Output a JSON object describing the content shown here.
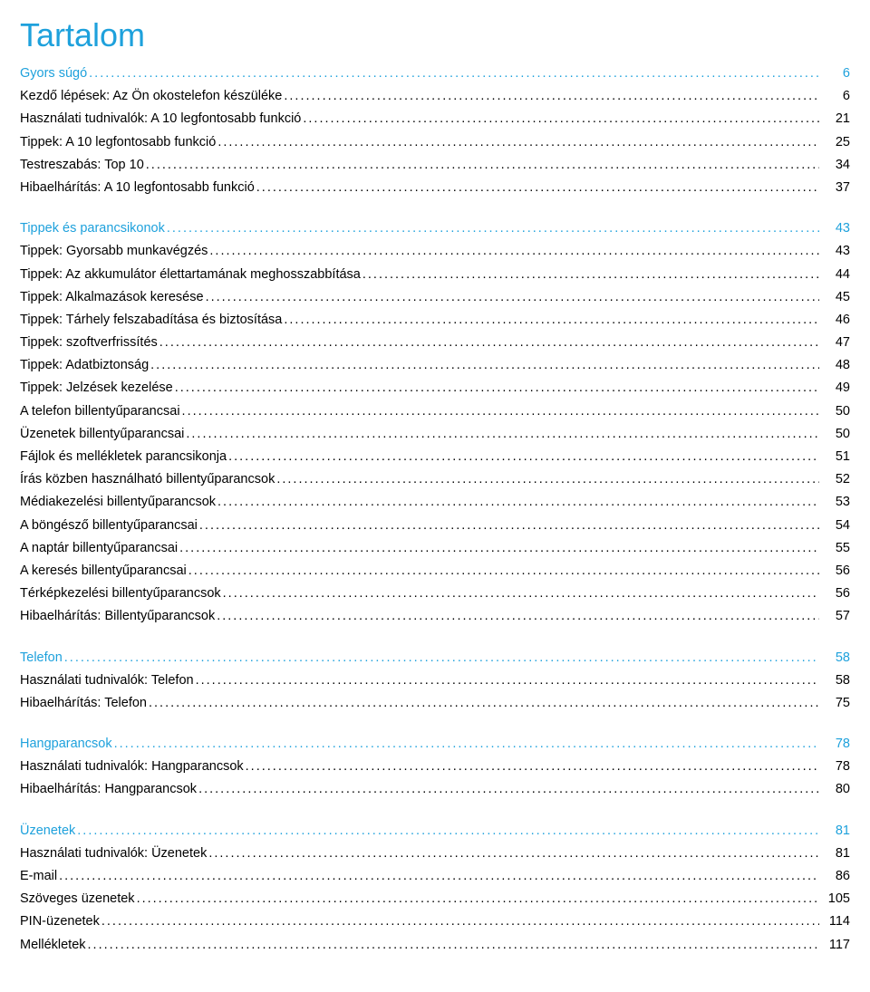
{
  "title": "Tartalom",
  "colors": {
    "accent": "#1ea1dc",
    "black": "#000000",
    "dotsAccent": "#1ea1dc",
    "dotsBlack": "#000000"
  },
  "typography": {
    "title_fontsize": 36,
    "line_fontsize": 14.5,
    "font_family": "Arial, Helvetica, sans-serif"
  },
  "sections": [
    {
      "head": {
        "label": "Gyors súgó",
        "page": "6",
        "color": "accent"
      },
      "items": [
        {
          "label": "Kezdő lépések: Az Ön okostelefon készüléke",
          "page": "6",
          "color": "black"
        },
        {
          "label": "Használati tudnivalók: A 10 legfontosabb funkció",
          "page": "21",
          "color": "black"
        },
        {
          "label": "Tippek: A 10 legfontosabb funkció",
          "page": "25",
          "color": "black"
        },
        {
          "label": "Testreszabás: Top 10",
          "page": "34",
          "color": "black"
        },
        {
          "label": "Hibaelhárítás: A 10 legfontosabb funkció",
          "page": "37",
          "color": "black"
        }
      ]
    },
    {
      "head": {
        "label": "Tippek és parancsikonok",
        "page": "43",
        "color": "accent"
      },
      "items": [
        {
          "label": "Tippek: Gyorsabb munkavégzés",
          "page": "43",
          "color": "black"
        },
        {
          "label": "Tippek: Az akkumulátor élettartamának meghosszabbítása",
          "page": "44",
          "color": "black"
        },
        {
          "label": "Tippek: Alkalmazások keresése",
          "page": "45",
          "color": "black"
        },
        {
          "label": "Tippek: Tárhely felszabadítása és biztosítása",
          "page": "46",
          "color": "black"
        },
        {
          "label": "Tippek: szoftverfrissítés",
          "page": "47",
          "color": "black"
        },
        {
          "label": "Tippek: Adatbiztonság",
          "page": "48",
          "color": "black"
        },
        {
          "label": "Tippek: Jelzések kezelése",
          "page": "49",
          "color": "black"
        },
        {
          "label": "A telefon billentyűparancsai",
          "page": "50",
          "color": "black"
        },
        {
          "label": "Üzenetek billentyűparancsai",
          "page": "50",
          "color": "black"
        },
        {
          "label": "Fájlok és mellékletek parancsikonja",
          "page": "51",
          "color": "black"
        },
        {
          "label": "Írás közben használható billentyűparancsok",
          "page": "52",
          "color": "black"
        },
        {
          "label": "Médiakezelési billentyűparancsok",
          "page": "53",
          "color": "black"
        },
        {
          "label": "A böngésző billentyűparancsai",
          "page": "54",
          "color": "black"
        },
        {
          "label": "A naptár billentyűparancsai",
          "page": "55",
          "color": "black"
        },
        {
          "label": "A keresés billentyűparancsai",
          "page": "56",
          "color": "black"
        },
        {
          "label": "Térképkezelési billentyűparancsok",
          "page": "56",
          "color": "black"
        },
        {
          "label": "Hibaelhárítás: Billentyűparancsok",
          "page": "57",
          "color": "black"
        }
      ]
    },
    {
      "head": {
        "label": "Telefon",
        "page": "58",
        "color": "accent"
      },
      "items": [
        {
          "label": "Használati tudnivalók: Telefon",
          "page": "58",
          "color": "black"
        },
        {
          "label": "Hibaelhárítás: Telefon",
          "page": "75",
          "color": "black"
        }
      ]
    },
    {
      "head": {
        "label": "Hangparancsok",
        "page": "78",
        "color": "accent"
      },
      "items": [
        {
          "label": "Használati tudnivalók: Hangparancsok",
          "page": "78",
          "color": "black"
        },
        {
          "label": "Hibaelhárítás: Hangparancsok",
          "page": "80",
          "color": "black"
        }
      ]
    },
    {
      "head": {
        "label": "Üzenetek",
        "page": "81",
        "color": "accent"
      },
      "items": [
        {
          "label": "Használati tudnivalók: Üzenetek",
          "page": "81",
          "color": "black"
        },
        {
          "label": "E-mail",
          "page": "86",
          "color": "black"
        },
        {
          "label": "Szöveges üzenetek",
          "page": "105",
          "color": "black"
        },
        {
          "label": "PIN-üzenetek",
          "page": "114",
          "color": "black"
        },
        {
          "label": "Mellékletek",
          "page": "117",
          "color": "black"
        }
      ]
    }
  ]
}
